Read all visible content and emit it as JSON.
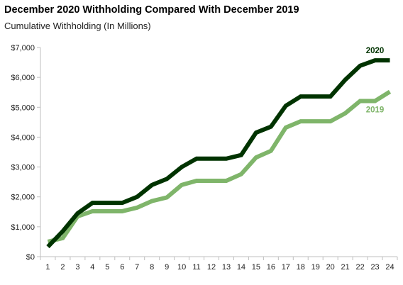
{
  "chart_data": {
    "type": "line",
    "title": "December 2020 Withholding Compared With December 2019",
    "subtitle": "Cumulative Withholding (In Millions)",
    "xlabel": "",
    "ylabel": "",
    "x": [
      1,
      2,
      3,
      4,
      5,
      6,
      7,
      8,
      9,
      10,
      11,
      12,
      13,
      14,
      15,
      16,
      17,
      18,
      19,
      20,
      21,
      22,
      23,
      24
    ],
    "x_tick_labels": [
      "1",
      "2",
      "3",
      "4",
      "5",
      "6",
      "7",
      "8",
      "9",
      "10",
      "11",
      "12",
      "13",
      "14",
      "15",
      "16",
      "17",
      "18",
      "19",
      "20",
      "21",
      "22",
      "23",
      "24"
    ],
    "ylim": [
      0,
      7000
    ],
    "y_ticks": [
      0,
      1000,
      2000,
      3000,
      4000,
      5000,
      6000,
      7000
    ],
    "y_tick_labels": [
      "$0",
      "$1,000",
      "$2,000",
      "$3,000",
      "$4,000",
      "$5,000",
      "$6,000",
      "$7,000"
    ],
    "grid": false,
    "legend": "direct labels at series ends",
    "series": [
      {
        "name": "2020",
        "color": "#003300",
        "values": [
          330,
          850,
          1450,
          1800,
          1800,
          1800,
          2000,
          2400,
          2600,
          3000,
          3280,
          3280,
          3280,
          3400,
          4150,
          4350,
          5050,
          5360,
          5360,
          5360,
          5920,
          6390,
          6570,
          6570
        ]
      },
      {
        "name": "2019",
        "color": "#7fb56a",
        "values": [
          500,
          620,
          1350,
          1520,
          1520,
          1520,
          1640,
          1860,
          1980,
          2400,
          2540,
          2540,
          2540,
          2760,
          3320,
          3540,
          4320,
          4530,
          4530,
          4530,
          4800,
          5210,
          5210,
          5520
        ]
      }
    ]
  }
}
